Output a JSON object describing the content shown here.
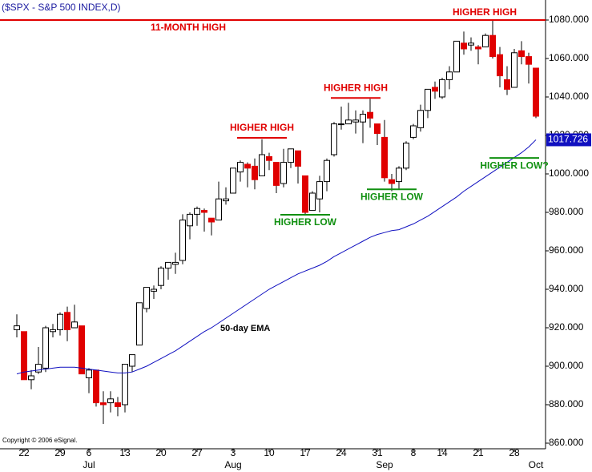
{
  "chart_data": {
    "type": "candlestick",
    "title": "($SPX - S&P 500 INDEX,D)",
    "copyright": "Copyright © 2006 eSignal.",
    "categories": [
      null,
      "22",
      null,
      null,
      null,
      null,
      "29",
      null,
      null,
      null,
      "6",
      null,
      null,
      null,
      null,
      "13",
      null,
      null,
      null,
      null,
      "20",
      null,
      null,
      null,
      null,
      "27",
      null,
      null,
      null,
      null,
      "3",
      null,
      null,
      null,
      null,
      "10",
      null,
      null,
      null,
      null,
      "17",
      null,
      null,
      null,
      null,
      "24",
      null,
      null,
      null,
      null,
      "31",
      null,
      null,
      null,
      null,
      "8",
      null,
      null,
      null,
      "14",
      null,
      null,
      null,
      null,
      "21",
      null,
      null,
      null,
      null,
      "28",
      null,
      null,
      null
    ],
    "months": [
      null,
      null,
      null,
      null,
      null,
      null,
      null,
      null,
      null,
      null,
      "Jul",
      null,
      null,
      null,
      null,
      null,
      null,
      null,
      null,
      null,
      null,
      null,
      null,
      null,
      null,
      null,
      null,
      null,
      null,
      null,
      "Aug",
      null,
      null,
      null,
      null,
      null,
      null,
      null,
      null,
      null,
      null,
      null,
      null,
      null,
      null,
      null,
      null,
      null,
      null,
      null,
      null,
      "Sep",
      null,
      null,
      null,
      null,
      null,
      null,
      null,
      null,
      null,
      null,
      null,
      null,
      null,
      null,
      null,
      null,
      null,
      null,
      null,
      null,
      "Oct"
    ],
    "open": [
      919,
      918,
      893,
      897,
      899,
      918,
      919,
      928,
      920,
      921,
      894,
      898,
      881,
      881,
      881,
      880,
      900,
      911,
      930,
      939,
      942,
      951,
      953,
      955,
      973,
      979,
      981,
      977,
      976,
      986,
      990,
      1001,
      1005,
      1004,
      999,
      1009,
      1006,
      995,
      1006,
      1012,
      999,
      981,
      987,
      996,
      1010,
      1026,
      1026,
      1027,
      1027,
      1032,
      1026,
      1019,
      997,
      996,
      1003,
      1019,
      1024,
      1033,
      1045,
      1040,
      1049,
      1053,
      1068,
      1067,
      1066,
      1066,
      1072,
      1062,
      1049,
      1045,
      1064,
      1061,
      1055
    ],
    "high": [
      927,
      918,
      898,
      910,
      921,
      922,
      928,
      931,
      932,
      921,
      899,
      898,
      887,
      887,
      884,
      901,
      906,
      933,
      941,
      942,
      952,
      954,
      959,
      979,
      980,
      983,
      982,
      977,
      996,
      993,
      1003,
      1007,
      1006,
      1008,
      1018,
      1011,
      1006,
      1013,
      1013,
      1012,
      999,
      991,
      999,
      1008,
      1027,
      1035,
      1037,
      1033,
      1033,
      1039,
      1026,
      1028,
      1000,
      1004,
      1017,
      1026,
      1036,
      1044,
      1048,
      1050,
      1056,
      1069,
      1074,
      1071,
      1067,
      1073,
      1080,
      1066,
      1056,
      1065,
      1069,
      1063,
      1055
    ],
    "low": [
      915,
      893,
      888,
      896,
      897,
      915,
      916,
      913,
      920,
      896,
      886,
      879,
      870,
      876,
      874,
      876,
      897,
      911,
      928,
      935,
      940,
      945,
      948,
      953,
      966,
      973,
      970,
      968,
      976,
      984,
      990,
      996,
      993,
      992,
      999,
      1002,
      990,
      993,
      1003,
      995,
      979,
      981,
      980,
      991,
      1009,
      1023,
      1026,
      1021,
      1016,
      1024,
      1015,
      996,
      991,
      992,
      1002,
      1018,
      1022,
      1029,
      1039,
      1039,
      1044,
      1053,
      1062,
      1064,
      1057,
      1066,
      1060,
      1045,
      1041,
      1045,
      1057,
      1047,
      1029
    ],
    "close": [
      921,
      893,
      895,
      901,
      920,
      919,
      927,
      919,
      923,
      896,
      898,
      881,
      880,
      883,
      879,
      901,
      906,
      933,
      941,
      940,
      951,
      954,
      954,
      976,
      979,
      982,
      980,
      975,
      987,
      987,
      1003,
      1006,
      1003,
      997,
      1010,
      1007,
      994,
      1006,
      1013,
      1004,
      980,
      990,
      996,
      1007,
      1026,
      1026,
      1028,
      1028,
      1031,
      1029,
      1021,
      998,
      995,
      1003,
      1016,
      1025,
      1033,
      1044,
      1043,
      1049,
      1053,
      1069,
      1065,
      1068,
      1065,
      1072,
      1061,
      1051,
      1044,
      1063,
      1061,
      1057,
      1030
    ],
    "up_color": "#ffffff",
    "down_color": "#e00000",
    "ema": {
      "name": "50-day EMA",
      "color": "#1010c0",
      "values": [
        896,
        897,
        897.5,
        898,
        898.5,
        899,
        899.5,
        899.5,
        899.5,
        899,
        898.5,
        898,
        897.5,
        897,
        896.5,
        896.5,
        897,
        898.5,
        900,
        902,
        904,
        906,
        908,
        910.5,
        913,
        915.5,
        918,
        920,
        922.5,
        925,
        927.5,
        930,
        932.5,
        935,
        937.5,
        940,
        942,
        944,
        946,
        948,
        949.5,
        951,
        952.5,
        954.5,
        957,
        959,
        961,
        963,
        965,
        967,
        968.5,
        969.5,
        970.5,
        971,
        972.5,
        974,
        976,
        978,
        980.5,
        983,
        985.5,
        988,
        991,
        993.5,
        996,
        998.5,
        1001,
        1003.5,
        1006,
        1008.5,
        1011,
        1014,
        1017.726
      ]
    },
    "annotations": [
      {
        "text": "11-MONTH HIGH",
        "color": "#e00000",
        "level": 1080
      },
      {
        "text": "HIGHER HIGH",
        "color": "#e00000",
        "level": 1018.75,
        "from": 31,
        "to": 37
      },
      {
        "text": "HIGHER HIGH",
        "color": "#e00000",
        "level": 1039.5,
        "from": 44,
        "to": 50
      },
      {
        "text": "HIGHER HIGH",
        "color": "#e00000"
      },
      {
        "text": "HIGHER LOW",
        "color": "#109010",
        "level": 978.75,
        "from": 37,
        "to": 43
      },
      {
        "text": "HIGHER LOW",
        "color": "#109010",
        "level": 992,
        "from": 49,
        "to": 55
      },
      {
        "text": "HIGHER LOW?",
        "color": "#109010",
        "level": 1008.3,
        "from": 66,
        "to": 72
      }
    ],
    "ylim": [
      860,
      1080
    ],
    "yticks": [
      {
        "value": 860,
        "label": "860.000"
      },
      {
        "value": 880,
        "label": "880.000"
      },
      {
        "value": 900,
        "label": "900.000"
      },
      {
        "value": 920,
        "label": "920.000"
      },
      {
        "value": 940,
        "label": "940.000"
      },
      {
        "value": 960,
        "label": "960.000"
      },
      {
        "value": 980,
        "label": "980.000"
      },
      {
        "value": 1000,
        "label": "1000.000"
      },
      {
        "value": 1020,
        "label": "1020.000"
      },
      {
        "value": 1040,
        "label": "1040.000"
      },
      {
        "value": 1060,
        "label": "1060.000"
      },
      {
        "value": 1080,
        "label": "1080.000"
      }
    ]
  }
}
